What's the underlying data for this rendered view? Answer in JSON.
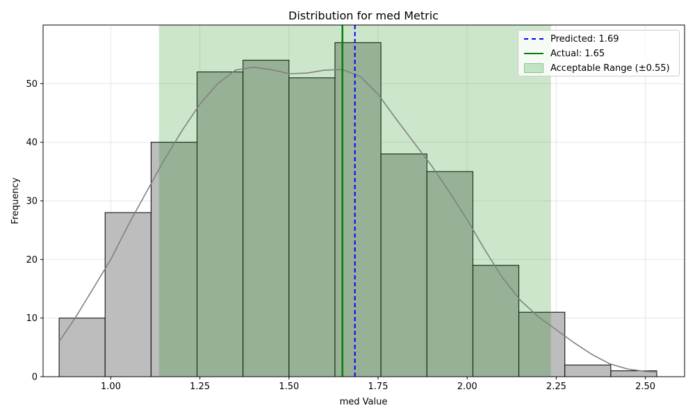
{
  "chart_data": {
    "type": "bar",
    "title": "Distribution for med Metric",
    "xlabel": "med Value",
    "ylabel": "Frequency",
    "xlim": [
      0.81,
      2.61
    ],
    "ylim": [
      0,
      60
    ],
    "xticks": [
      1.0,
      1.25,
      1.5,
      1.75,
      2.0,
      2.25,
      2.5
    ],
    "xtick_labels": [
      "1.00",
      "1.25",
      "1.50",
      "1.75",
      "2.00",
      "2.25",
      "2.50"
    ],
    "yticks": [
      0,
      10,
      20,
      30,
      40,
      50
    ],
    "grid": true,
    "legend_position": "top-right",
    "bins": [
      {
        "x0": 0.855,
        "x1": 0.984,
        "count": 10
      },
      {
        "x0": 0.984,
        "x1": 1.113,
        "count": 28
      },
      {
        "x0": 1.113,
        "x1": 1.242,
        "count": 40
      },
      {
        "x0": 1.242,
        "x1": 1.371,
        "count": 52
      },
      {
        "x0": 1.371,
        "x1": 1.5,
        "count": 54
      },
      {
        "x0": 1.5,
        "x1": 1.629,
        "count": 51
      },
      {
        "x0": 1.629,
        "x1": 1.758,
        "count": 57
      },
      {
        "x0": 1.758,
        "x1": 1.887,
        "count": 38
      },
      {
        "x0": 1.887,
        "x1": 2.016,
        "count": 35
      },
      {
        "x0": 2.016,
        "x1": 2.145,
        "count": 19
      },
      {
        "x0": 2.145,
        "x1": 2.274,
        "count": 11
      },
      {
        "x0": 2.274,
        "x1": 2.403,
        "count": 2
      },
      {
        "x0": 2.403,
        "x1": 2.532,
        "count": 1
      }
    ],
    "kde": {
      "x": [
        0.855,
        0.9,
        0.95,
        1.0,
        1.05,
        1.1,
        1.15,
        1.2,
        1.25,
        1.3,
        1.35,
        1.4,
        1.45,
        1.5,
        1.55,
        1.6,
        1.65,
        1.7,
        1.75,
        1.8,
        1.85,
        1.9,
        1.95,
        2.0,
        2.05,
        2.1,
        2.15,
        2.2,
        2.25,
        2.3,
        2.35,
        2.4,
        2.45,
        2.5,
        2.532
      ],
      "y": [
        6,
        10,
        15,
        20,
        26,
        31.5,
        37,
        42,
        46.5,
        50,
        52.3,
        52.8,
        52.4,
        51.7,
        51.8,
        52.3,
        52.4,
        51.2,
        48.2,
        44,
        40,
        36,
        31.5,
        26.8,
        21.6,
        16.8,
        13,
        10.2,
        8,
        5.8,
        3.8,
        2.2,
        1.3,
        0.9,
        0.8
      ]
    },
    "predicted": 1.685,
    "actual": 1.65,
    "acceptable_range": [
      1.135,
      2.235
    ],
    "legend": {
      "predicted": "Predicted: 1.69",
      "actual": "Actual: 1.65",
      "range": "Acceptable Range (±0.55)"
    },
    "colors": {
      "bar": "#bdbdbd",
      "bar_edge": "#000000",
      "range_fill": "#008000",
      "predicted": "#0000ff",
      "actual": "#008000",
      "kde": "#808080"
    }
  }
}
